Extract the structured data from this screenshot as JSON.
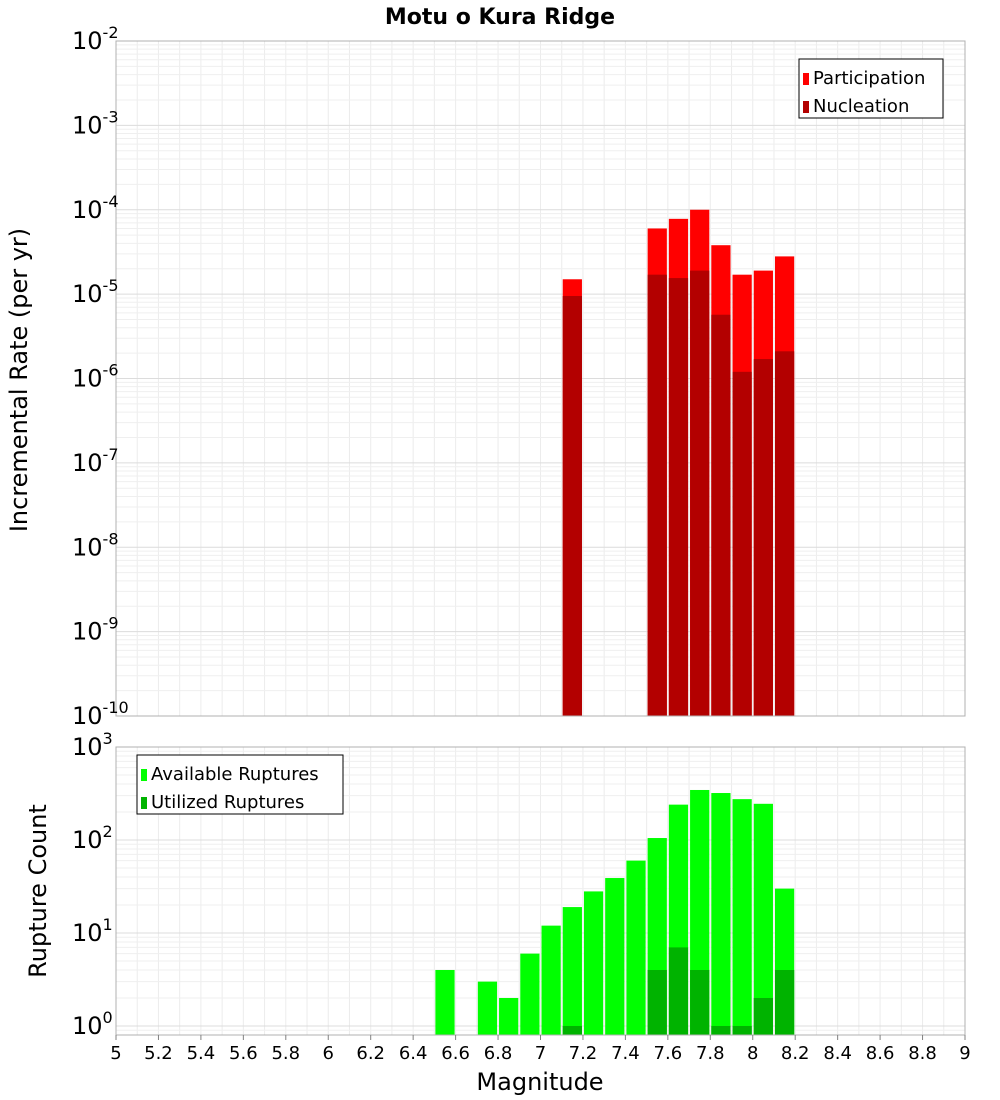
{
  "chart_data": [
    {
      "type": "bar",
      "title": "Motu o Kura Ridge",
      "xlabel": "Magnitude",
      "ylabel": "Incremental Rate (per yr)",
      "yscale": "log",
      "xlim": [
        5,
        9
      ],
      "ylim": [
        1e-10,
        0.01
      ],
      "grid": true,
      "legend_position": "top-right",
      "bin_width": 0.1,
      "y_tick_labels": [
        {
          "base": "10",
          "exp": "-10"
        },
        {
          "base": "10",
          "exp": "-9"
        },
        {
          "base": "10",
          "exp": "-8"
        },
        {
          "base": "10",
          "exp": "-7"
        },
        {
          "base": "10",
          "exp": "-6"
        },
        {
          "base": "10",
          "exp": "-5"
        },
        {
          "base": "10",
          "exp": "-4"
        },
        {
          "base": "10",
          "exp": "-3"
        },
        {
          "base": "10",
          "exp": "-2"
        }
      ],
      "series": [
        {
          "name": "Participation",
          "color": "#ff0000",
          "x": [
            7.15,
            7.55,
            7.65,
            7.75,
            7.85,
            7.95,
            8.05,
            8.15
          ],
          "values": [
            1.5e-05,
            6e-05,
            7.8e-05,
            0.0001,
            3.8e-05,
            1.7e-05,
            1.9e-05,
            2.8e-05
          ]
        },
        {
          "name": "Nucleation",
          "color": "#b30000",
          "x": [
            7.15,
            7.55,
            7.65,
            7.75,
            7.85,
            7.95,
            8.05,
            8.15
          ],
          "values": [
            9.5e-06,
            1.7e-05,
            1.55e-05,
            1.9e-05,
            5.7e-06,
            1.2e-06,
            1.7e-06,
            2.1e-06
          ]
        }
      ]
    },
    {
      "type": "bar",
      "xlabel": "Magnitude",
      "ylabel": "Rupture Count",
      "yscale": "log",
      "xlim": [
        5,
        9
      ],
      "ylim": [
        0.8,
        1000
      ],
      "grid": true,
      "legend_position": "top-left",
      "bin_width": 0.1,
      "x_tick_labels": [
        "5",
        "5.2",
        "5.4",
        "5.6",
        "5.8",
        "6",
        "6.2",
        "6.4",
        "6.6",
        "6.8",
        "7",
        "7.2",
        "7.4",
        "7.6",
        "7.8",
        "8",
        "8.2",
        "8.4",
        "8.6",
        "8.8",
        "9"
      ],
      "y_tick_labels": [
        {
          "base": "10",
          "exp": "0"
        },
        {
          "base": "10",
          "exp": "1"
        },
        {
          "base": "10",
          "exp": "2"
        },
        {
          "base": "10",
          "exp": "3"
        }
      ],
      "series": [
        {
          "name": "Available Ruptures",
          "color": "#00ff00",
          "x": [
            6.55,
            6.75,
            6.85,
            6.95,
            7.05,
            7.15,
            7.25,
            7.35,
            7.45,
            7.55,
            7.65,
            7.75,
            7.85,
            7.95,
            8.05,
            8.15
          ],
          "values": [
            4,
            3,
            2,
            6,
            12,
            19,
            28,
            39,
            60,
            105,
            240,
            345,
            320,
            275,
            245,
            30
          ]
        },
        {
          "name": "Utilized Ruptures",
          "color": "#00b300",
          "x": [
            7.15,
            7.55,
            7.65,
            7.75,
            7.85,
            7.95,
            8.05,
            8.15
          ],
          "values": [
            1,
            4,
            7,
            4,
            1,
            1,
            2,
            4
          ]
        }
      ]
    }
  ]
}
